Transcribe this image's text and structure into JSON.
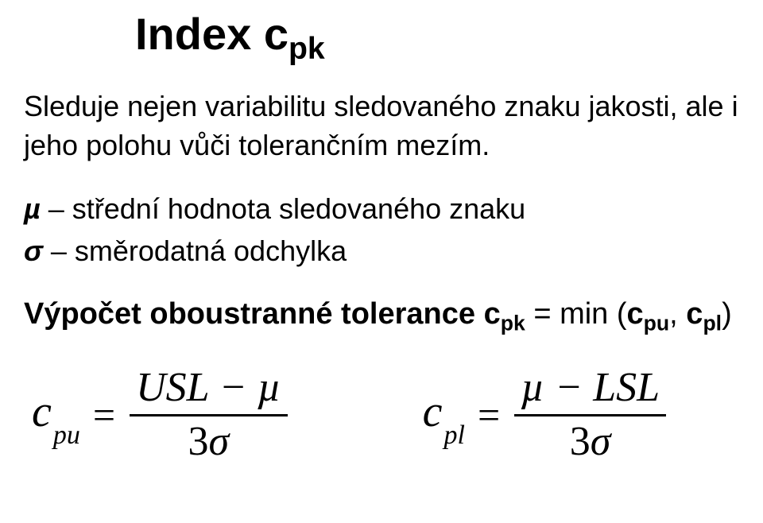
{
  "title_main": "Index c",
  "title_sub": "pk",
  "intro": "Sleduje nejen variabilitu sledovaného znaku jakosti, ale i jeho polohu vůči tolerančním mezím.",
  "def_mu_symbol": "µ",
  "def_mu_text": " – střední hodnota sledovaného znaku",
  "def_sigma_symbol": "σ",
  "def_sigma_text": " – směrodatná odchylka",
  "formula_label_prefix": "Výpočet oboustranné tolerance ",
  "formula_c": "c",
  "formula_pk": "pk",
  "formula_eq": " = ",
  "formula_min": "min (",
  "formula_cpu": "pu",
  "formula_comma": ", ",
  "formula_cpl": "pl",
  "formula_close": ")",
  "math": {
    "cpu": {
      "lhs_c": "c",
      "lhs_sub": "pu",
      "num": "USL − µ",
      "den_num": "3",
      "den_sigma": "σ"
    },
    "cpl": {
      "lhs_c": "c",
      "lhs_sub": "pl",
      "num": "µ − LSL",
      "den_num": "3",
      "den_sigma": "σ"
    }
  }
}
